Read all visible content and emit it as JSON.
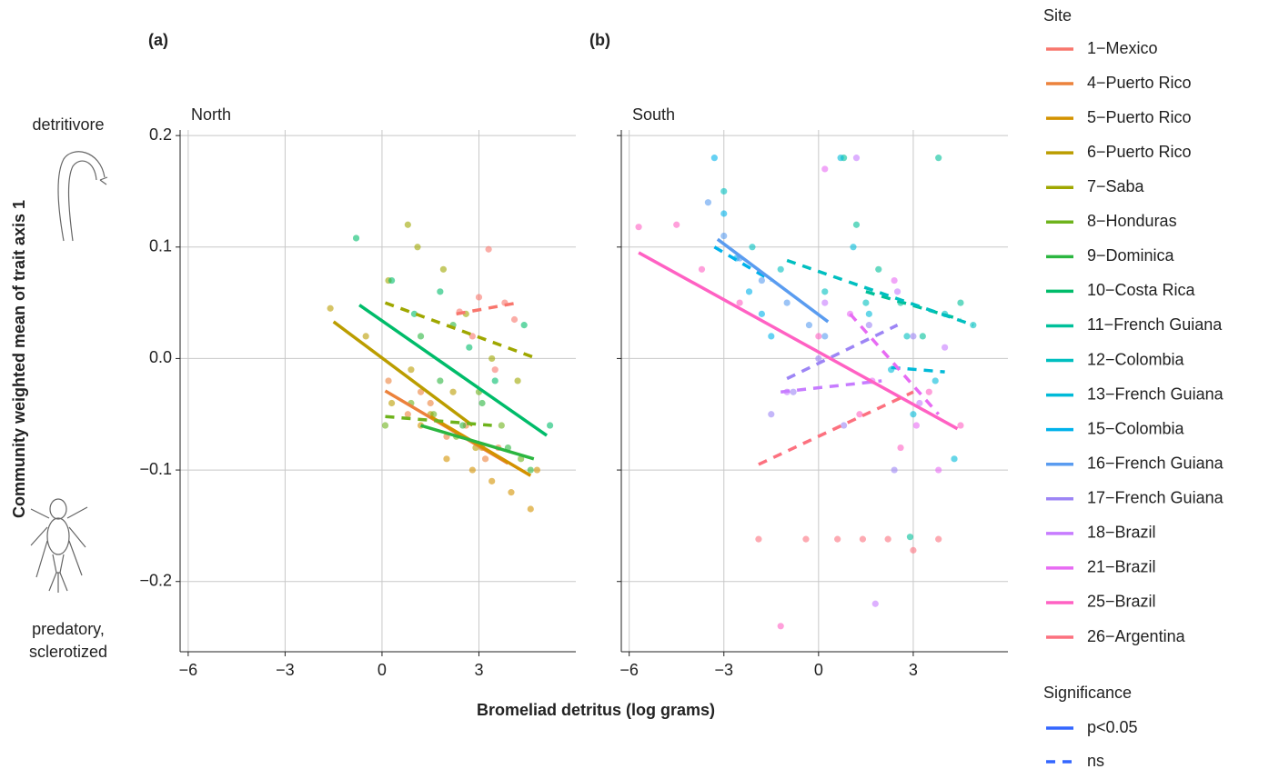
{
  "chart_data": {
    "type": "scatter",
    "y_label": "Community weighted mean of trait axis 1",
    "x_label": "Bromeliad detritus (log grams)",
    "top_label": "detritivore",
    "bottom_label": [
      "predatory,",
      "sclerotized"
    ],
    "xlim": [
      -6.25,
      6
    ],
    "ylim": [
      -0.263,
      0.205
    ],
    "xticks": [
      {
        "value": -6,
        "label": "−6"
      },
      {
        "value": -3,
        "label": "−3"
      },
      0,
      3
    ],
    "yticks": [
      0.2,
      0.1,
      {
        "value": 0,
        "label": "0.0"
      },
      {
        "value": -0.1,
        "label": "−0.1"
      },
      {
        "value": -0.2,
        "label": "−0.2"
      }
    ],
    "grid": true,
    "legend": {
      "title": "Site",
      "significance_title": "Significance",
      "significance": [
        "p<0.05",
        "ns"
      ],
      "significance_color": "#3366ff"
    },
    "panels": [
      {
        "tag": "(a)",
        "title": "North",
        "series": [
          {
            "name": "1−Mexico",
            "color": "#f8766d",
            "x": [
              2.4,
              3.0,
              3.3,
              3.8,
              4.1,
              2.8,
              3.5
            ],
            "values": [
              0.042,
              0.055,
              0.098,
              0.05,
              0.035,
              0.02,
              -0.01
            ],
            "fit": {
              "x": [
                2.3,
                4.2
              ],
              "values": [
                0.04,
                0.05
              ],
              "significant": false
            }
          },
          {
            "name": "4−Puerto Rico",
            "color": "#ec823c",
            "x": [
              0.2,
              0.8,
              1.5,
              2.0,
              2.6,
              3.2,
              3.6,
              1.2
            ],
            "values": [
              -0.02,
              -0.05,
              -0.04,
              -0.07,
              -0.06,
              -0.09,
              -0.08,
              -0.03
            ],
            "fit": {
              "x": [
                0.1,
                3.9
              ],
              "values": [
                -0.029,
                -0.094
              ],
              "significant": true
            }
          },
          {
            "name": "5−Puerto Rico",
            "color": "#d39200",
            "x": [
              1.2,
              2.0,
              2.8,
              3.4,
              4.0,
              4.6,
              3.1,
              4.8
            ],
            "values": [
              -0.06,
              -0.09,
              -0.1,
              -0.11,
              -0.12,
              -0.135,
              -0.08,
              -0.1
            ],
            "fit": {
              "x": [
                1.5,
                4.6
              ],
              "values": [
                -0.052,
                -0.105
              ],
              "significant": true
            }
          },
          {
            "name": "6−Puerto Rico",
            "color": "#bb9d00",
            "x": [
              -1.6,
              -0.5,
              0.3,
              0.9,
              1.5,
              2.2,
              2.9
            ],
            "values": [
              0.045,
              0.02,
              -0.04,
              -0.01,
              -0.05,
              -0.03,
              -0.08
            ],
            "fit": {
              "x": [
                -1.5,
                2.8
              ],
              "values": [
                0.033,
                -0.06
              ],
              "significant": true
            }
          },
          {
            "name": "7−Saba",
            "color": "#9fa700",
            "x": [
              0.2,
              0.8,
              1.1,
              1.9,
              2.6,
              3.4,
              4.2
            ],
            "values": [
              0.07,
              0.12,
              0.1,
              0.08,
              0.04,
              0.0,
              -0.02
            ],
            "fit": {
              "x": [
                0.1,
                4.8
              ],
              "values": [
                0.05,
                0.0
              ],
              "significant": false
            }
          },
          {
            "name": "8−Honduras",
            "color": "#6eb31c",
            "x": [
              0.1,
              0.9,
              1.6,
              2.3,
              3.0,
              3.7,
              4.3
            ],
            "values": [
              -0.06,
              -0.04,
              -0.05,
              -0.07,
              -0.03,
              -0.06,
              -0.09
            ],
            "fit": {
              "x": [
                0.1,
                3.4
              ],
              "values": [
                -0.052,
                -0.06
              ],
              "significant": false
            }
          },
          {
            "name": "9−Dominica",
            "color": "#2bb640",
            "x": [
              1.2,
              1.8,
              2.5,
              3.1,
              3.9,
              4.6,
              2.2
            ],
            "values": [
              0.02,
              -0.02,
              -0.06,
              -0.04,
              -0.08,
              -0.1,
              0.03
            ],
            "fit": {
              "x": [
                1.2,
                4.7
              ],
              "values": [
                -0.06,
                -0.09
              ],
              "significant": true
            }
          },
          {
            "name": "10−Costa Rica",
            "color": "#00bc6a",
            "x": [
              -0.8,
              0.3,
              1.0,
              1.8,
              2.7,
              3.5,
              4.4,
              5.2
            ],
            "values": [
              0.108,
              0.07,
              0.04,
              0.06,
              0.01,
              -0.02,
              0.03,
              -0.06
            ],
            "fit": {
              "x": [
                -0.7,
                5.1
              ],
              "values": [
                0.048,
                -0.069
              ],
              "significant": true
            }
          }
        ]
      },
      {
        "tag": "(b)",
        "title": "South",
        "series": [
          {
            "name": "11−French Guiana",
            "color": "#00c09a",
            "x": [
              0.8,
              1.2,
              1.9,
              2.6,
              3.3,
              3.8,
              4.5,
              2.9
            ],
            "values": [
              0.18,
              0.12,
              0.08,
              0.05,
              0.02,
              0.18,
              0.05,
              -0.16
            ],
            "fit": {
              "x": [
                1.5,
                4.5
              ],
              "values": [
                0.06,
                0.035
              ],
              "significant": false
            }
          },
          {
            "name": "12−Colombia",
            "color": "#00bfc0",
            "x": [
              -3.0,
              -2.1,
              -1.2,
              0.2,
              1.5,
              2.8,
              4.0,
              4.9
            ],
            "values": [
              0.15,
              0.1,
              0.08,
              0.06,
              0.05,
              0.02,
              0.04,
              0.03
            ],
            "fit": {
              "x": [
                -1.0,
                4.9
              ],
              "values": [
                0.088,
                0.03
              ],
              "significant": false
            }
          },
          {
            "name": "13−French Guiana",
            "color": "#00bad8",
            "x": [
              0.7,
              1.1,
              1.6,
              2.3,
              3.0,
              3.7,
              4.3
            ],
            "values": [
              0.18,
              0.1,
              0.04,
              -0.01,
              -0.05,
              -0.02,
              -0.09
            ],
            "fit": {
              "x": [
                2.3,
                4.0
              ],
              "values": [
                -0.008,
                -0.012
              ],
              "significant": false
            }
          },
          {
            "name": "15−Colombia",
            "color": "#00b2eb",
            "x": [
              -3.3,
              -3.0,
              -2.6,
              -2.2,
              -1.8,
              -1.5
            ],
            "values": [
              0.18,
              0.13,
              0.09,
              0.06,
              0.04,
              0.02
            ],
            "fit": {
              "x": [
                -3.3,
                -1.5
              ],
              "values": [
                0.1,
                0.07
              ],
              "significant": false
            }
          },
          {
            "name": "16−French Guiana",
            "color": "#5a9cf0",
            "x": [
              -3.5,
              -3.0,
              -2.5,
              -1.8,
              -1.0,
              -0.3,
              0.2
            ],
            "values": [
              0.14,
              0.11,
              0.09,
              0.07,
              0.05,
              0.03,
              0.02
            ],
            "fit": {
              "x": [
                -3.2,
                0.3
              ],
              "values": [
                0.107,
                0.033
              ],
              "significant": true
            }
          },
          {
            "name": "17−French Guiana",
            "color": "#9d85f5",
            "x": [
              -1.5,
              -0.8,
              0.0,
              0.8,
              1.6,
              2.4,
              3.0
            ],
            "values": [
              -0.05,
              -0.03,
              0.0,
              -0.06,
              0.03,
              -0.1,
              0.02
            ],
            "fit": {
              "x": [
                -1.0,
                2.5
              ],
              "values": [
                -0.018,
                0.03
              ],
              "significant": false
            }
          },
          {
            "name": "18−Brazil",
            "color": "#c77cff",
            "x": [
              -1.0,
              0.2,
              1.2,
              1.8,
              2.5,
              3.2,
              4.0
            ],
            "values": [
              -0.03,
              0.05,
              0.18,
              -0.22,
              0.06,
              -0.04,
              0.01
            ],
            "fit": {
              "x": [
                -1.2,
                2.0
              ],
              "values": [
                -0.03,
                -0.02
              ],
              "significant": false
            }
          },
          {
            "name": "21−Brazil",
            "color": "#e76bf3",
            "x": [
              0.2,
              1.0,
              1.7,
              2.4,
              3.1,
              3.8
            ],
            "values": [
              0.17,
              0.04,
              -0.02,
              0.07,
              -0.06,
              -0.1
            ],
            "fit": {
              "x": [
                1.0,
                3.8
              ],
              "values": [
                0.04,
                -0.05
              ],
              "significant": false
            }
          },
          {
            "name": "25−Brazil",
            "color": "#ff61c3",
            "x": [
              -5.7,
              -4.5,
              -3.7,
              -2.5,
              -1.2,
              0.0,
              1.3,
              2.6,
              3.5,
              4.5
            ],
            "values": [
              0.118,
              0.12,
              0.08,
              0.05,
              -0.24,
              0.02,
              -0.05,
              -0.08,
              -0.03,
              -0.06
            ],
            "fit": {
              "x": [
                -5.7,
                4.4
              ],
              "values": [
                0.095,
                -0.063
              ],
              "significant": true
            }
          },
          {
            "name": "26−Argentina",
            "color": "#fc717f",
            "x": [
              -1.9,
              -0.4,
              0.6,
              1.4,
              2.2,
              3.0,
              3.8
            ],
            "values": [
              -0.162,
              -0.162,
              -0.162,
              -0.162,
              -0.162,
              -0.172,
              -0.162
            ],
            "fit": {
              "x": [
                -1.9,
                3.0
              ],
              "values": [
                -0.095,
                -0.03
              ],
              "significant": false
            }
          }
        ]
      }
    ]
  }
}
